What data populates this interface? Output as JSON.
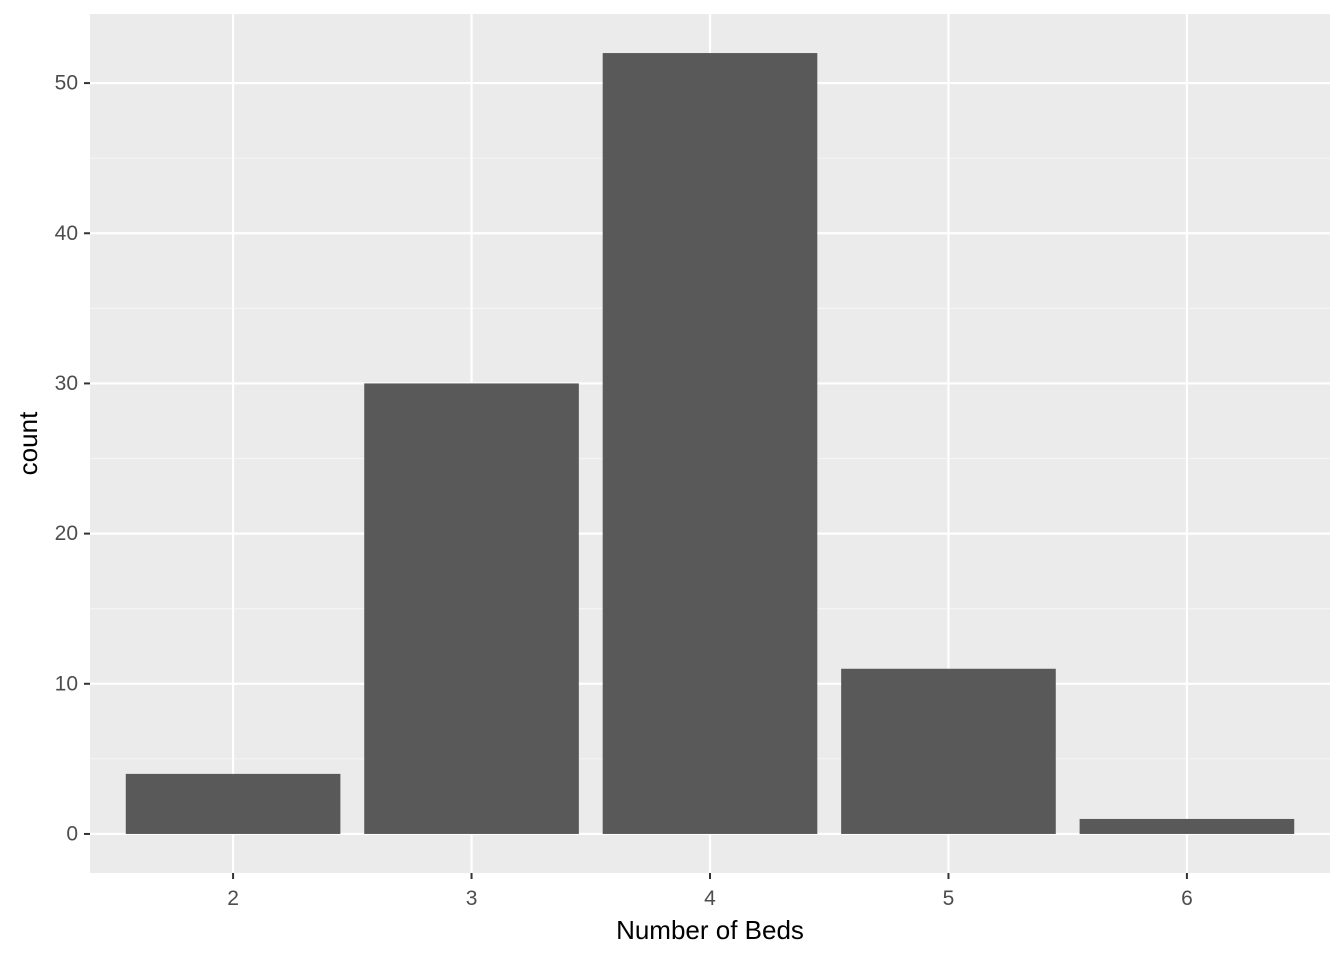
{
  "chart_data": {
    "type": "bar",
    "title": "",
    "xlabel": "Number of Beds",
    "ylabel": "count",
    "categories": [
      "2",
      "3",
      "4",
      "5",
      "6"
    ],
    "values": [
      4,
      30,
      52,
      11,
      1
    ],
    "ylim": [
      -2.6,
      54.6
    ],
    "y_ticks": [
      0,
      10,
      20,
      30,
      40,
      50
    ],
    "grid": true,
    "legend": "none"
  },
  "colors": {
    "panel_background": "#EBEBEB",
    "grid_major": "#FFFFFF",
    "grid_minor": "#F5F5F5",
    "bar_fill": "#595959",
    "tick_text": "#4D4D4D",
    "tick_mark": "#333333",
    "axis_title": "#000000"
  }
}
